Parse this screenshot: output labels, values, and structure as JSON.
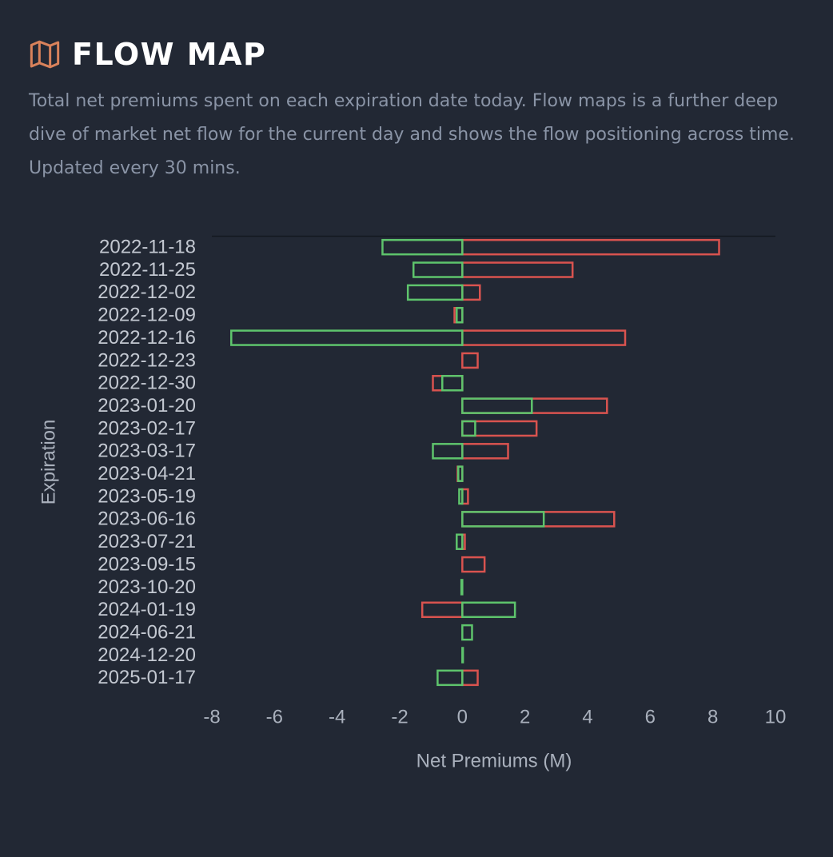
{
  "header": {
    "title": "FLOW MAP",
    "description": "Total net premiums spent on each expiration date today. Flow maps is a further deep dive of market net flow for the current day and shows the flow positioning across time. Updated every 30 mins."
  },
  "chart_data": {
    "type": "bar",
    "orientation": "horizontal",
    "x_label": "Net Premiums (M)",
    "y_label": "Expiration",
    "categories": [
      "2022-11-18",
      "2022-11-25",
      "2022-12-02",
      "2022-12-09",
      "2022-12-16",
      "2022-12-23",
      "2022-12-30",
      "2023-01-20",
      "2023-02-17",
      "2023-03-17",
      "2023-04-21",
      "2023-05-19",
      "2023-06-16",
      "2023-07-21",
      "2023-09-15",
      "2023-10-20",
      "2024-01-19",
      "2024-06-21",
      "2024-12-20",
      "2025-01-17"
    ],
    "series": [
      {
        "color": "#d9534f",
        "values": [
          8.2,
          3.52,
          0.56,
          -0.25,
          5.2,
          0.49,
          -0.94,
          4.62,
          2.37,
          1.46,
          -0.15,
          0.18,
          4.85,
          0.08,
          0.71,
          0,
          -1.28,
          0,
          0,
          0.49
        ]
      },
      {
        "color": "#5ec46c",
        "values": [
          -2.55,
          -1.56,
          -1.74,
          -0.18,
          -7.38,
          0,
          -0.64,
          2.22,
          0.41,
          -0.94,
          -0.13,
          -0.1,
          2.6,
          -0.18,
          0,
          -0.03,
          1.68,
          0.31,
          0.02,
          -0.79
        ]
      }
    ],
    "xlim": [
      -8,
      10
    ],
    "xticks": [
      -8,
      -6,
      -4,
      -2,
      0,
      2,
      4,
      6,
      8,
      10
    ]
  }
}
